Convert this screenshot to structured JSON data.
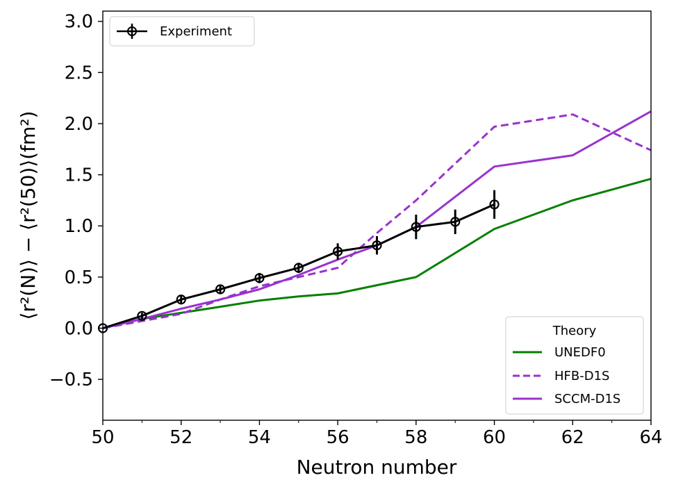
{
  "chart_data": {
    "type": "line",
    "title": "",
    "xlabel": "Neutron number",
    "ylabel": "⟨r²(N)⟩ − ⟨r²(50)⟩(fm²)",
    "xlim": [
      50,
      64
    ],
    "ylim": [
      -0.9,
      3.1
    ],
    "xticks": [
      50,
      52,
      54,
      56,
      58,
      60,
      62,
      64
    ],
    "yticks": [
      -0.5,
      0.0,
      0.5,
      1.0,
      1.5,
      2.0,
      2.5,
      3.0
    ],
    "ytick_labels": [
      "−0.5",
      "0.0",
      "0.5",
      "1.0",
      "1.5",
      "2.0",
      "2.5",
      "3.0"
    ],
    "experiment": {
      "name": "Experiment",
      "color": "#000000",
      "x": [
        50,
        51,
        52,
        53,
        54,
        55,
        56,
        57,
        58,
        59,
        60
      ],
      "y": [
        0.0,
        0.12,
        0.28,
        0.38,
        0.49,
        0.59,
        0.75,
        0.81,
        0.99,
        1.04,
        1.21
      ],
      "yerr": [
        0.0,
        0.03,
        0.04,
        0.04,
        0.05,
        0.05,
        0.08,
        0.09,
        0.12,
        0.12,
        0.14
      ]
    },
    "theory": {
      "legend_title": "Theory",
      "series": [
        {
          "name": "UNEDF0",
          "color": "#008000",
          "style": "solid",
          "x": [
            50,
            51,
            52,
            53,
            54,
            55,
            56,
            57,
            58,
            60,
            62,
            64
          ],
          "y": [
            0.0,
            0.09,
            0.15,
            0.21,
            0.27,
            0.31,
            0.34,
            0.42,
            0.5,
            0.97,
            1.25,
            1.46
          ]
        },
        {
          "name": "HFB-D1S",
          "color": "#9932cc",
          "style": "dashed",
          "x": [
            50,
            51,
            52,
            53,
            54,
            55,
            56,
            57,
            58,
            60,
            62,
            64
          ],
          "y": [
            0.0,
            0.07,
            0.14,
            0.28,
            0.41,
            0.5,
            0.59,
            0.93,
            1.25,
            1.97,
            2.09,
            1.74
          ]
        },
        {
          "name": "SCCM-D1S",
          "color": "#9932cc",
          "style": "solid",
          "x": [
            50,
            51,
            52,
            53,
            54,
            55,
            56,
            57,
            58,
            60,
            62,
            64
          ],
          "y": [
            0.0,
            0.09,
            0.19,
            0.28,
            0.38,
            0.52,
            0.67,
            0.81,
            0.99,
            1.58,
            1.69,
            2.12
          ]
        }
      ]
    }
  }
}
